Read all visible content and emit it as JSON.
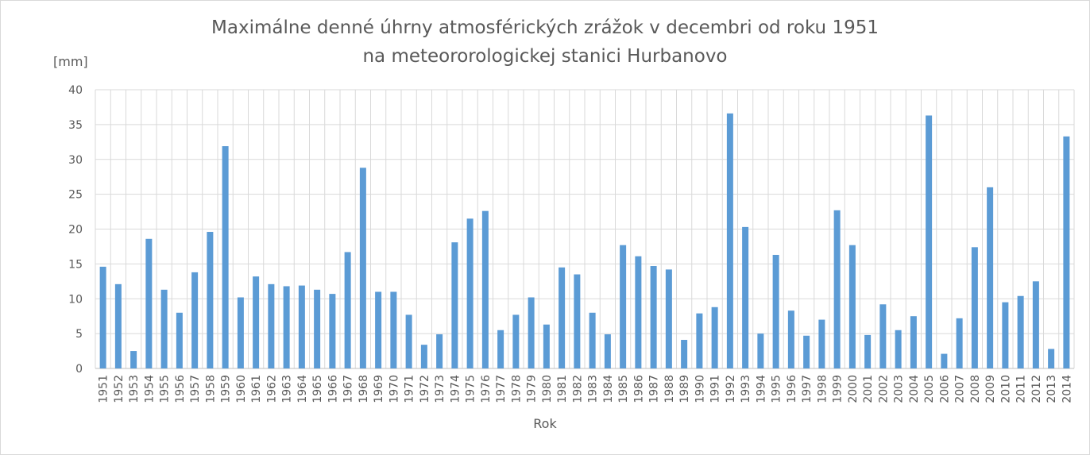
{
  "chart_data": {
    "type": "bar",
    "title": "Maximálne denné úhrny atmosférických zrážok v decembri od roku 1951",
    "subtitle": "na meteororologickej stanici Hurbanovo",
    "ylabel": "[mm]",
    "xlabel": "Rok",
    "ylim": [
      0,
      40
    ],
    "yticks": [
      0,
      5,
      10,
      15,
      20,
      25,
      30,
      35,
      40
    ],
    "grid": true,
    "bar_color": "#5b9bd5",
    "categories": [
      "1951",
      "1952",
      "1953",
      "1954",
      "1955",
      "1956",
      "1957",
      "1958",
      "1959",
      "1960",
      "1961",
      "1962",
      "1963",
      "1964",
      "1965",
      "1966",
      "1967",
      "1968",
      "1969",
      "1970",
      "1971",
      "1972",
      "1973",
      "1974",
      "1975",
      "1976",
      "1977",
      "1978",
      "1979",
      "1980",
      "1981",
      "1982",
      "1983",
      "1984",
      "1985",
      "1986",
      "1987",
      "1988",
      "1989",
      "1990",
      "1991",
      "1992",
      "1993",
      "1994",
      "1995",
      "1996",
      "1997",
      "1998",
      "1999",
      "2000",
      "2001",
      "2002",
      "2003",
      "2004",
      "2005",
      "2006",
      "2007",
      "2008",
      "2009",
      "2010",
      "2011",
      "2012",
      "2013",
      "2014"
    ],
    "values": [
      14.6,
      12.1,
      2.5,
      18.6,
      11.3,
      8.0,
      13.8,
      19.6,
      31.9,
      10.2,
      13.2,
      12.1,
      11.8,
      11.9,
      11.3,
      10.7,
      16.7,
      28.8,
      11.0,
      11.0,
      7.7,
      3.4,
      4.9,
      18.1,
      21.5,
      22.6,
      5.5,
      7.7,
      10.2,
      6.3,
      14.5,
      13.5,
      8.0,
      4.9,
      17.7,
      16.1,
      14.7,
      14.2,
      4.1,
      7.9,
      8.8,
      36.6,
      20.3,
      5.0,
      16.3,
      8.3,
      4.7,
      7.0,
      22.7,
      17.7,
      4.8,
      9.2,
      5.5,
      7.5,
      36.3,
      2.1,
      7.2,
      17.4,
      26.0,
      9.5,
      10.4,
      12.5,
      2.8,
      33.3
    ]
  }
}
